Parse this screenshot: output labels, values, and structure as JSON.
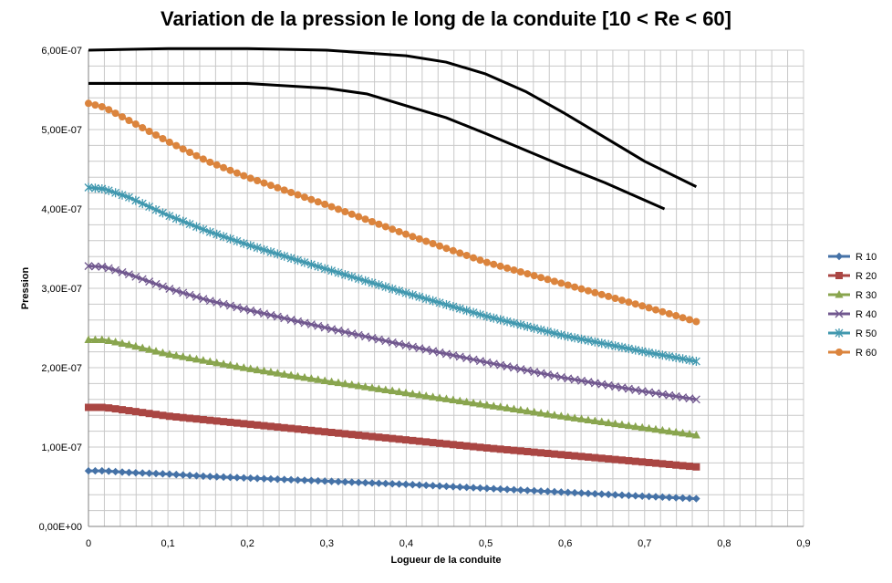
{
  "chart_data": {
    "type": "line",
    "title": "Variation de la pression le long de la conduite [10 < Re < 60]",
    "xlabel": "Logueur de la conduite",
    "ylabel": "Pression",
    "xlim": [
      0,
      0.9
    ],
    "ylim": [
      0,
      6e-07
    ],
    "x_ticks": [
      "0",
      "0,1",
      "0,2",
      "0,3",
      "0,4",
      "0,5",
      "0,6",
      "0,7",
      "0,8",
      "0,9"
    ],
    "y_ticks": [
      "0,00E+00",
      "1,00E-07",
      "2,00E-07",
      "3,00E-07",
      "4,00E-07",
      "5,00E-07",
      "6,00E-07"
    ],
    "grid": true,
    "legend_position": "right",
    "series": [
      {
        "name": "R 10",
        "color": "#4572A7",
        "marker": "diamond",
        "x": [
          0,
          0.02,
          0.05,
          0.1,
          0.15,
          0.2,
          0.3,
          0.4,
          0.5,
          0.6,
          0.7,
          0.765
        ],
        "y": [
          7e-08,
          7e-08,
          6.8e-08,
          6.6e-08,
          6.3e-08,
          6.1e-08,
          5.7e-08,
          5.3e-08,
          4.8e-08,
          4.3e-08,
          3.8e-08,
          3.5e-08
        ]
      },
      {
        "name": "R 20",
        "color": "#AA4643",
        "marker": "square",
        "x": [
          0,
          0.02,
          0.05,
          0.1,
          0.15,
          0.2,
          0.3,
          0.4,
          0.5,
          0.6,
          0.7,
          0.765
        ],
        "y": [
          1.5e-07,
          1.5e-07,
          1.46e-07,
          1.39e-07,
          1.34e-07,
          1.29e-07,
          1.19e-07,
          1.09e-07,
          9.9e-08,
          9e-08,
          8.1e-08,
          7.5e-08
        ]
      },
      {
        "name": "R 30",
        "color": "#89A54E",
        "marker": "triangle",
        "x": [
          0,
          0.02,
          0.05,
          0.1,
          0.15,
          0.2,
          0.3,
          0.4,
          0.5,
          0.6,
          0.7,
          0.765
        ],
        "y": [
          2.35e-07,
          2.35e-07,
          2.29e-07,
          2.17e-07,
          2.08e-07,
          1.99e-07,
          1.83e-07,
          1.68e-07,
          1.53e-07,
          1.38e-07,
          1.24e-07,
          1.15e-07
        ]
      },
      {
        "name": "R 40",
        "color": "#71588F",
        "marker": "x",
        "x": [
          0,
          0.02,
          0.05,
          0.1,
          0.15,
          0.2,
          0.3,
          0.4,
          0.5,
          0.6,
          0.7,
          0.765
        ],
        "y": [
          3.28e-07,
          3.27e-07,
          3.18e-07,
          3e-07,
          2.85e-07,
          2.73e-07,
          2.5e-07,
          2.28e-07,
          2.07e-07,
          1.87e-07,
          1.7e-07,
          1.6e-07
        ]
      },
      {
        "name": "R 50",
        "color": "#4198AF",
        "marker": "star",
        "x": [
          0,
          0.02,
          0.05,
          0.1,
          0.15,
          0.2,
          0.3,
          0.4,
          0.5,
          0.6,
          0.7,
          0.765
        ],
        "y": [
          4.27e-07,
          4.25e-07,
          4.15e-07,
          3.92e-07,
          3.72e-07,
          3.55e-07,
          3.24e-07,
          2.94e-07,
          2.65e-07,
          2.4e-07,
          2.2e-07,
          2.08e-07
        ]
      },
      {
        "name": "R 60",
        "color": "#DB843D",
        "marker": "circle",
        "x": [
          0,
          0.02,
          0.05,
          0.1,
          0.15,
          0.2,
          0.3,
          0.4,
          0.5,
          0.6,
          0.7,
          0.765
        ],
        "y": [
          5.33e-07,
          5.28e-07,
          5.12e-07,
          4.85e-07,
          4.6e-07,
          4.4e-07,
          4.05e-07,
          3.68e-07,
          3.33e-07,
          3.05e-07,
          2.77e-07,
          2.58e-07
        ]
      },
      {
        "color": "#000000",
        "marker": "none",
        "x": [
          0,
          0.1,
          0.2,
          0.3,
          0.4,
          0.45,
          0.5,
          0.55,
          0.6,
          0.65,
          0.7,
          0.765
        ],
        "y": [
          6e-07,
          6.02e-07,
          6.02e-07,
          6e-07,
          5.93e-07,
          5.85e-07,
          5.7e-07,
          5.48e-07,
          5.2e-07,
          4.9e-07,
          4.6e-07,
          4.28e-07
        ]
      },
      {
        "color": "#000000",
        "marker": "none",
        "x": [
          0,
          0.1,
          0.2,
          0.3,
          0.35,
          0.4,
          0.45,
          0.5,
          0.55,
          0.6,
          0.65,
          0.725
        ],
        "y": [
          5.58e-07,
          5.58e-07,
          5.58e-07,
          5.52e-07,
          5.45e-07,
          5.3e-07,
          5.15e-07,
          4.95e-07,
          4.74e-07,
          4.53e-07,
          4.33e-07,
          4e-07
        ]
      }
    ]
  }
}
